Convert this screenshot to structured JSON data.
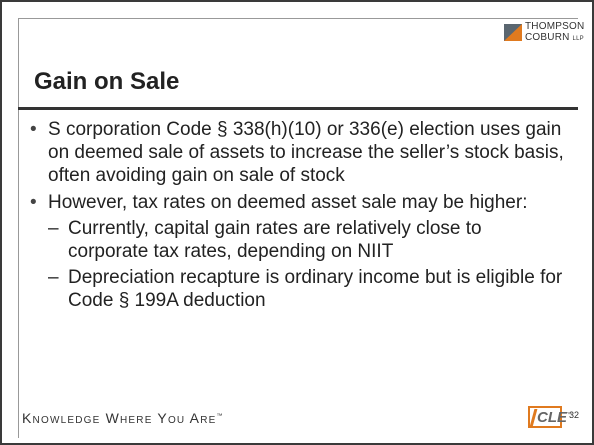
{
  "header": {
    "logo": {
      "line1": "THOMPSON",
      "line2": "COBURN",
      "suffix": "LLP"
    }
  },
  "title": "Gain on Sale",
  "bullets": [
    {
      "text": "S corporation Code § 338(h)(10) or 336(e) election uses gain on deemed sale of assets to increase the seller’s stock basis, often avoiding gain on sale of stock"
    },
    {
      "text": "However, tax rates on deemed asset sale may be higher:",
      "sub": [
        "Currently, capital gain rates are relatively close to corporate tax rates, depending on NIIT",
        "Depreciation recapture is ordinary income but is eligible for Code § 199A deduction"
      ]
    }
  ],
  "footer": {
    "tagline": "Knowledge Where You Are",
    "trademark": "™",
    "badge": "CLE",
    "badge_mark": "™",
    "page": 32
  }
}
